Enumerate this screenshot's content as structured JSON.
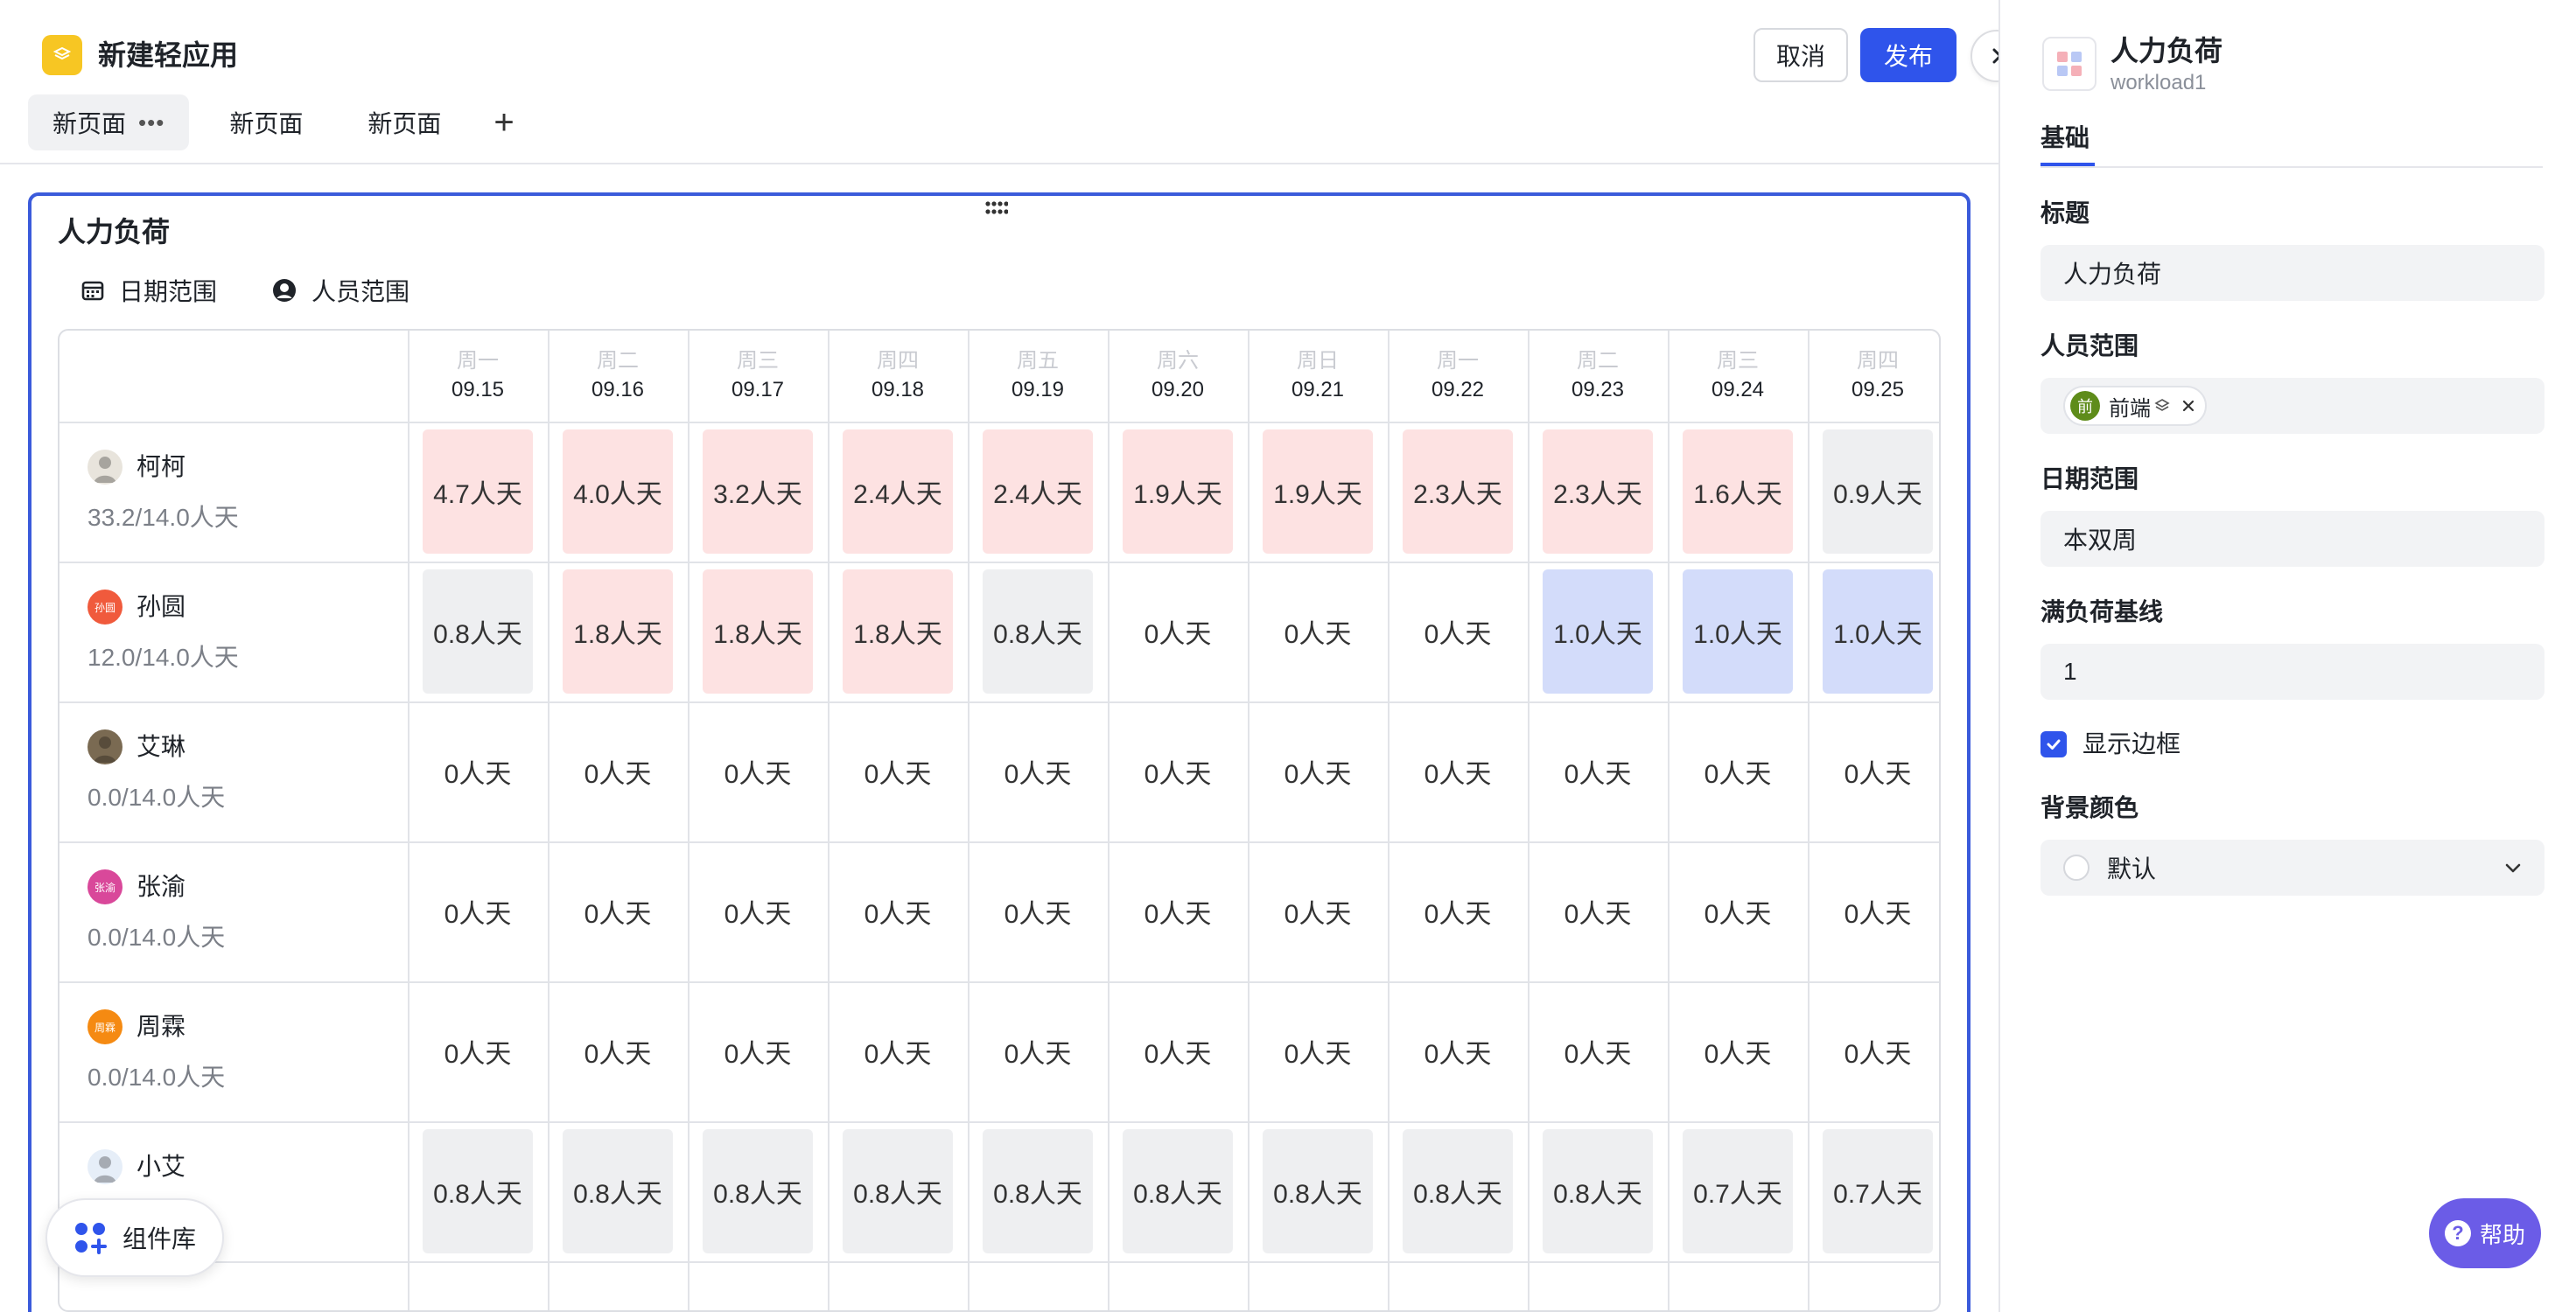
{
  "app": {
    "title": "新建轻应用"
  },
  "tabs": [
    {
      "label": "新页面",
      "active": true,
      "more": "•••"
    },
    {
      "label": "新页面",
      "active": false
    },
    {
      "label": "新页面",
      "active": false
    }
  ],
  "tab_add": "+",
  "toolbar": {
    "cancel_label": "取消",
    "publish_label": "发布"
  },
  "widget": {
    "title": "人力负荷",
    "filters": {
      "date_label": "日期范围",
      "people_label": "人员范围"
    },
    "days": [
      {
        "weekday": "周一",
        "date": "09.15"
      },
      {
        "weekday": "周二",
        "date": "09.16"
      },
      {
        "weekday": "周三",
        "date": "09.17"
      },
      {
        "weekday": "周四",
        "date": "09.18"
      },
      {
        "weekday": "周五",
        "date": "09.19"
      },
      {
        "weekday": "周六",
        "date": "09.20"
      },
      {
        "weekday": "周日",
        "date": "09.21"
      },
      {
        "weekday": "周一",
        "date": "09.22"
      },
      {
        "weekday": "周二",
        "date": "09.23"
      },
      {
        "weekday": "周三",
        "date": "09.24"
      },
      {
        "weekday": "周四",
        "date": "09.25"
      }
    ],
    "people": [
      {
        "name": "柯柯",
        "load": "33.2/14.0人天",
        "avatar_color": "#e8e4dc",
        "avatar_text": "",
        "cells": [
          {
            "text": "4.7人天",
            "level": "high"
          },
          {
            "text": "4.0人天",
            "level": "high"
          },
          {
            "text": "3.2人天",
            "level": "high"
          },
          {
            "text": "2.4人天",
            "level": "high"
          },
          {
            "text": "2.4人天",
            "level": "high"
          },
          {
            "text": "1.9人天",
            "level": "high"
          },
          {
            "text": "1.9人天",
            "level": "high"
          },
          {
            "text": "2.3人天",
            "level": "high"
          },
          {
            "text": "2.3人天",
            "level": "high"
          },
          {
            "text": "1.6人天",
            "level": "high"
          },
          {
            "text": "0.9人天",
            "level": "low"
          }
        ]
      },
      {
        "name": "孙圆",
        "load": "12.0/14.0人天",
        "avatar_color": "#f05a3c",
        "avatar_text": "孙圆",
        "cells": [
          {
            "text": "0.8人天",
            "level": "low"
          },
          {
            "text": "1.8人天",
            "level": "high"
          },
          {
            "text": "1.8人天",
            "level": "high"
          },
          {
            "text": "1.8人天",
            "level": "high"
          },
          {
            "text": "0.8人天",
            "level": "low"
          },
          {
            "text": "0人天",
            "level": "none"
          },
          {
            "text": "0人天",
            "level": "none"
          },
          {
            "text": "0人天",
            "level": "none"
          },
          {
            "text": "1.0人天",
            "level": "full"
          },
          {
            "text": "1.0人天",
            "level": "full"
          },
          {
            "text": "1.0人天",
            "level": "full"
          }
        ]
      },
      {
        "name": "艾琳",
        "load": "0.0/14.0人天",
        "avatar_color": "#7a6a52",
        "avatar_text": "",
        "cells": [
          {
            "text": "0人天",
            "level": "none"
          },
          {
            "text": "0人天",
            "level": "none"
          },
          {
            "text": "0人天",
            "level": "none"
          },
          {
            "text": "0人天",
            "level": "none"
          },
          {
            "text": "0人天",
            "level": "none"
          },
          {
            "text": "0人天",
            "level": "none"
          },
          {
            "text": "0人天",
            "level": "none"
          },
          {
            "text": "0人天",
            "level": "none"
          },
          {
            "text": "0人天",
            "level": "none"
          },
          {
            "text": "0人天",
            "level": "none"
          },
          {
            "text": "0人天",
            "level": "none"
          }
        ]
      },
      {
        "name": "张渝",
        "load": "0.0/14.0人天",
        "avatar_color": "#d9489a",
        "avatar_text": "张渝",
        "cells": [
          {
            "text": "0人天",
            "level": "none"
          },
          {
            "text": "0人天",
            "level": "none"
          },
          {
            "text": "0人天",
            "level": "none"
          },
          {
            "text": "0人天",
            "level": "none"
          },
          {
            "text": "0人天",
            "level": "none"
          },
          {
            "text": "0人天",
            "level": "none"
          },
          {
            "text": "0人天",
            "level": "none"
          },
          {
            "text": "0人天",
            "level": "none"
          },
          {
            "text": "0人天",
            "level": "none"
          },
          {
            "text": "0人天",
            "level": "none"
          },
          {
            "text": "0人天",
            "level": "none"
          }
        ]
      },
      {
        "name": "周霖",
        "load": "0.0/14.0人天",
        "avatar_color": "#f58a12",
        "avatar_text": "周霖",
        "cells": [
          {
            "text": "0人天",
            "level": "none"
          },
          {
            "text": "0人天",
            "level": "none"
          },
          {
            "text": "0人天",
            "level": "none"
          },
          {
            "text": "0人天",
            "level": "none"
          },
          {
            "text": "0人天",
            "level": "none"
          },
          {
            "text": "0人天",
            "level": "none"
          },
          {
            "text": "0人天",
            "level": "none"
          },
          {
            "text": "0人天",
            "level": "none"
          },
          {
            "text": "0人天",
            "level": "none"
          },
          {
            "text": "0人天",
            "level": "none"
          },
          {
            "text": "0人天",
            "level": "none"
          }
        ]
      },
      {
        "name": "小艾",
        "load": "天",
        "avatar_color": "#e6eef8",
        "avatar_text": "",
        "cells": [
          {
            "text": "0.8人天",
            "level": "low"
          },
          {
            "text": "0.8人天",
            "level": "low"
          },
          {
            "text": "0.8人天",
            "level": "low"
          },
          {
            "text": "0.8人天",
            "level": "low"
          },
          {
            "text": "0.8人天",
            "level": "low"
          },
          {
            "text": "0.8人天",
            "level": "low"
          },
          {
            "text": "0.8人天",
            "level": "low"
          },
          {
            "text": "0.8人天",
            "level": "low"
          },
          {
            "text": "0.8人天",
            "level": "low"
          },
          {
            "text": "0.7人天",
            "level": "low"
          },
          {
            "text": "0.7人天",
            "level": "low"
          }
        ]
      }
    ]
  },
  "component_library": {
    "label": "组件库"
  },
  "panel": {
    "title": "人力负荷",
    "subtitle": "workload1",
    "tab": "基础",
    "fields": {
      "title_label": "标题",
      "title_value": "人力负荷",
      "people_label": "人员范围",
      "people_tag": "前端",
      "people_tag_avatar": "前",
      "date_label": "日期范围",
      "date_value": "本双周",
      "baseline_label": "满负荷基线",
      "baseline_value": "1",
      "border_label": "显示边框",
      "border_checked": true,
      "bg_label": "背景颜色",
      "bg_value": "默认"
    }
  },
  "help": {
    "label": "帮助",
    "icon": "?"
  },
  "colors": {
    "accent": "#2f54eb",
    "widget_border": "#3b5bdb",
    "over_load": "#fde2e2",
    "under_load": "#eeeff1",
    "full_load": "#d3dcfa",
    "help": "#6b5ce7",
    "logo": "#f7c623"
  }
}
